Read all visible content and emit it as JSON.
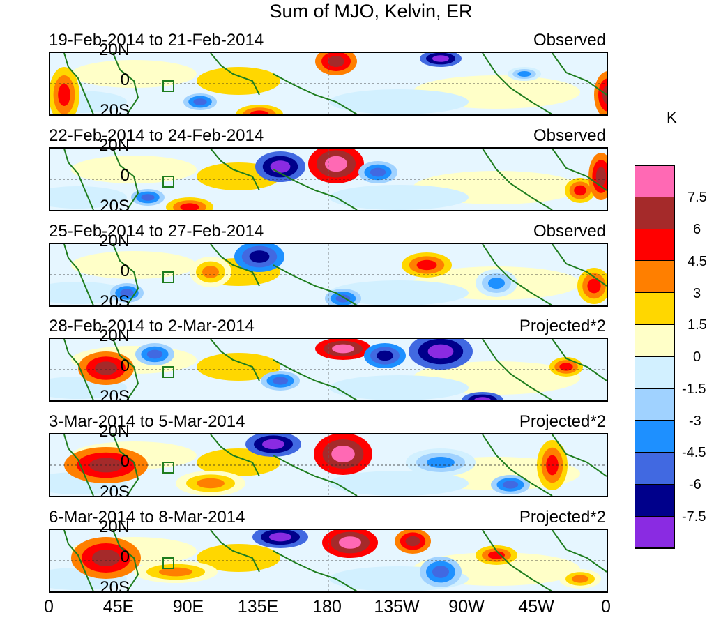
{
  "title": "Sum of MJO, Kelvin, ER",
  "panels": [
    {
      "date_range": "19-Feb-2014 to 21-Feb-2014",
      "kind": "Observed"
    },
    {
      "date_range": "22-Feb-2014 to 24-Feb-2014",
      "kind": "Observed"
    },
    {
      "date_range": "25-Feb-2014 to 27-Feb-2014",
      "kind": "Observed"
    },
    {
      "date_range": "28-Feb-2014 to 2-Mar-2014",
      "kind": "Projected*2"
    },
    {
      "date_range": "3-Mar-2014 to 5-Mar-2014",
      "kind": "Projected*2"
    },
    {
      "date_range": "6-Mar-2014 to 8-Mar-2014",
      "kind": "Projected*2"
    }
  ],
  "lat_labels": [
    "20N",
    "0",
    "20S"
  ],
  "lon_labels": [
    "0",
    "45E",
    "90E",
    "135E",
    "180",
    "135W",
    "90W",
    "45W",
    "0"
  ],
  "colorbar": {
    "unit": "K",
    "labels": [
      "7.5",
      "6",
      "4.5",
      "3",
      "1.5",
      "0",
      "-1.5",
      "-3",
      "-4.5",
      "-6",
      "-7.5"
    ],
    "colors": [
      "#ff69b4",
      "#a52a2a",
      "#ff0000",
      "#ff7f00",
      "#ffd700",
      "#ffffc8",
      "#d2f0ff",
      "#a0d2ff",
      "#1e90ff",
      "#4169e1",
      "#00008b",
      "#8a2be2"
    ]
  }
}
